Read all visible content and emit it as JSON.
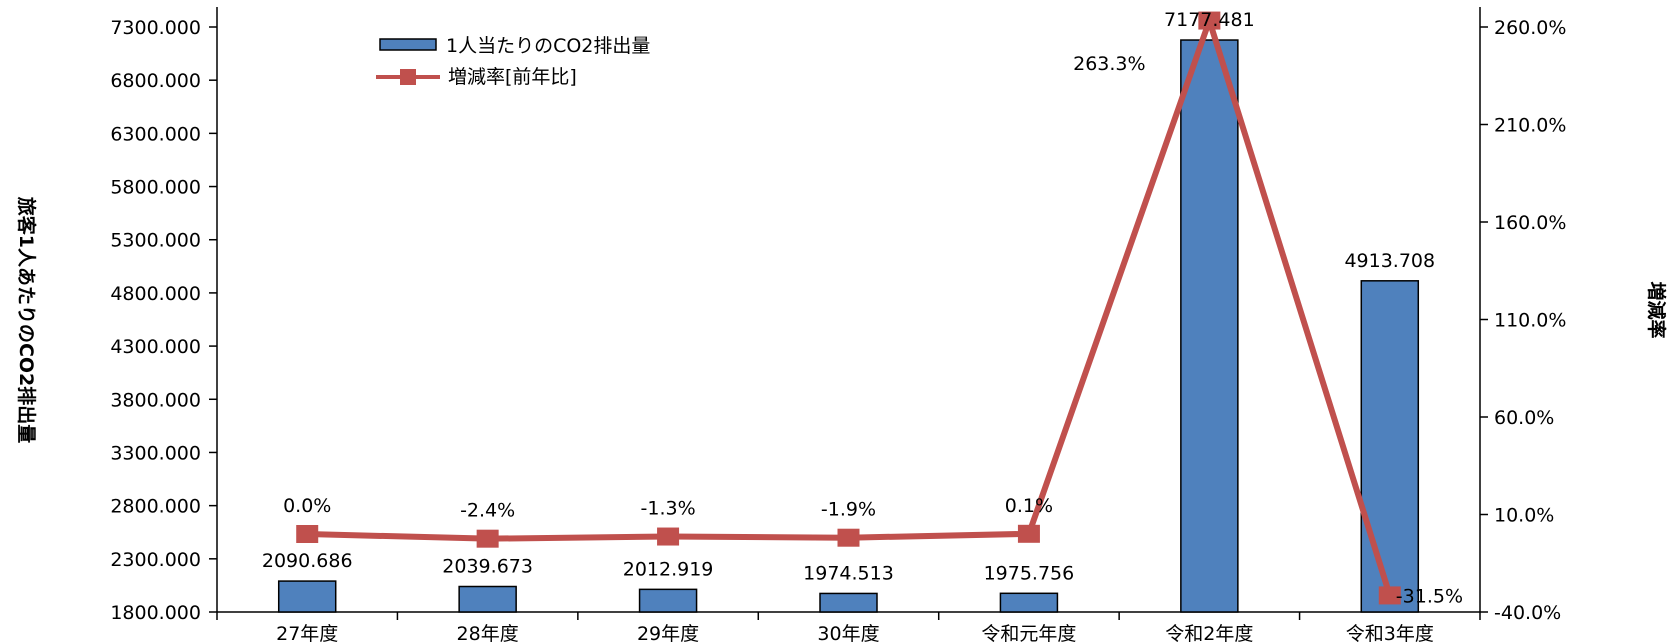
{
  "chart_data": {
    "type": "bar",
    "categories": [
      "27年度",
      "28年度",
      "29年度",
      "30年度",
      "令和元年度",
      "令和2年度",
      "令和3年度"
    ],
    "series": [
      {
        "name": "1人当たりのCO2排出量",
        "type": "bar",
        "axis": "left",
        "values": [
          2090.686,
          2039.673,
          2012.919,
          1974.513,
          1975.756,
          7177.481,
          4913.708
        ],
        "labels": [
          "2090.686",
          "2039.673",
          "2012.919",
          "1974.513",
          "1975.756",
          "7177.481",
          "4913.708"
        ],
        "color": "#4f81bd"
      },
      {
        "name": "増減率[前年比]",
        "type": "line",
        "axis": "right",
        "values": [
          0.0,
          -2.4,
          -1.3,
          -1.9,
          0.1,
          263.3,
          -31.5
        ],
        "labels": [
          "0.0%",
          "-2.4%",
          "-1.3%",
          "-1.9%",
          "0.1%",
          "263.3%",
          "-31.5%"
        ],
        "color": "#c0504d"
      }
    ],
    "ylabel": "旅客1人あたりのCO2排出量",
    "ylabel_right": "増減率",
    "ylim": [
      1800,
      7300
    ],
    "y_ticks": [
      "1800.000",
      "2300.000",
      "2800.000",
      "3300.000",
      "3800.000",
      "4300.000",
      "4800.000",
      "5300.000",
      "5800.000",
      "6300.000",
      "6800.000",
      "7300.000"
    ],
    "ylim_right": [
      -40,
      260
    ],
    "y_ticks_right": [
      "-40.0%",
      "10.0%",
      "60.0%",
      "110.0%",
      "160.0%",
      "210.0%",
      "260.0%"
    ],
    "grid": false,
    "legend_position": "top-left"
  }
}
